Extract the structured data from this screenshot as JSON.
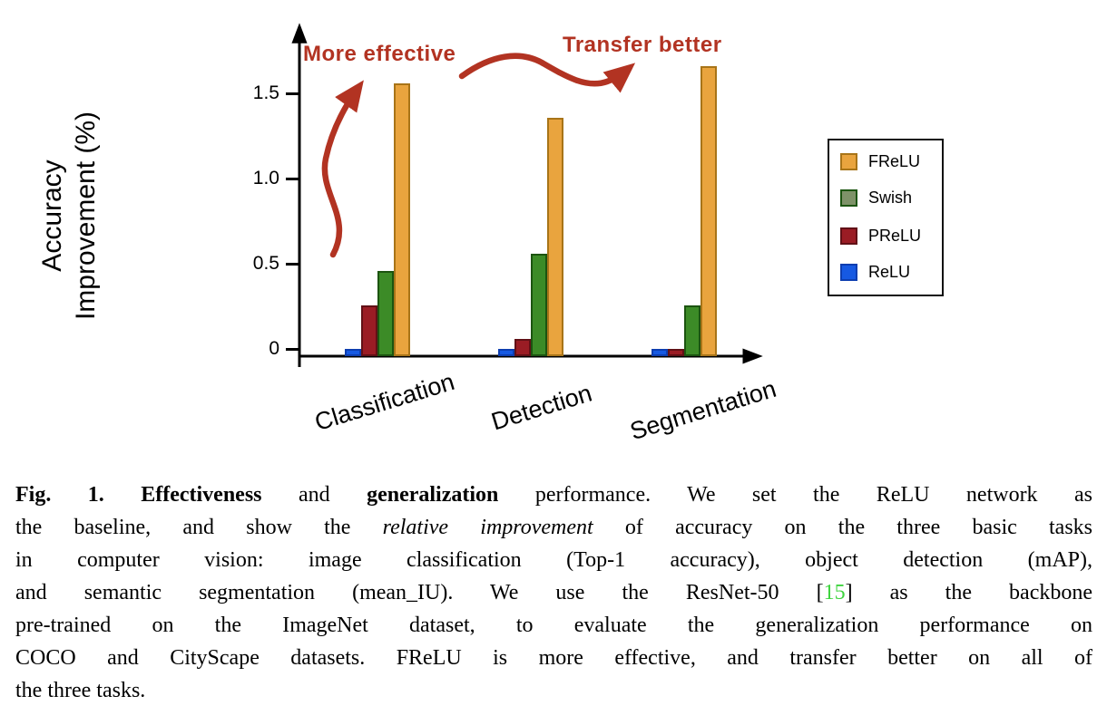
{
  "chart_data": {
    "type": "bar",
    "categories": [
      "Classification",
      "Detection",
      "Segmentation"
    ],
    "series": [
      {
        "name": "FReLU",
        "values": [
          1.6,
          1.4,
          1.7
        ],
        "color": "#e9a43e",
        "border": "#a87418",
        "legend_swatch": "#e9a43e"
      },
      {
        "name": "Swish",
        "values": [
          0.5,
          0.6,
          0.3
        ],
        "color": "#3c8b27",
        "border": "#1c5410",
        "legend_swatch": "#7e9268"
      },
      {
        "name": "PReLU",
        "values": [
          0.3,
          0.1,
          0.0
        ],
        "color": "#9a1c24",
        "border": "#611016",
        "legend_swatch": "#9a1c24"
      },
      {
        "name": "ReLU",
        "values": [
          0.0,
          0.0,
          0.0
        ],
        "color": "#1659e2",
        "border": "#0d3eb0",
        "legend_swatch": "#1659e2"
      }
    ],
    "ylabel_lines": [
      "Accuracy",
      "Improvement (%)"
    ],
    "ytick_labels": [
      "0",
      "0.5",
      "1.0",
      "1.5"
    ],
    "ytick_values": [
      0,
      0.5,
      1.0,
      1.5
    ],
    "ylim": [
      0,
      1.9
    ],
    "grid": false,
    "legend_position": "right",
    "baseline_note": "ReLU is the zero baseline",
    "annotation_color": "#b23322",
    "annotations": [
      {
        "text": "More effective",
        "arrow": "s-curve-up"
      },
      {
        "text": "Transfer better",
        "arrow": "wavy-right"
      }
    ]
  },
  "caption": {
    "citation_color": "#3fd43f",
    "lines": [
      [
        {
          "t": "Fig. 1. Effectiveness",
          "s": "b"
        },
        {
          "t": " and ",
          "s": "n"
        },
        {
          "t": "generalization",
          "s": "b"
        },
        {
          "t": " performance. We set the ReLU network as",
          "s": "n"
        }
      ],
      [
        {
          "t": "the baseline, and show the ",
          "s": "n"
        },
        {
          "t": "relative improvement",
          "s": "i"
        },
        {
          "t": " of accuracy on the three basic tasks",
          "s": "n"
        }
      ],
      [
        {
          "t": "in computer vision: image classification (Top-1 accuracy), object detection (mAP),",
          "s": "n"
        }
      ],
      [
        {
          "t": "and semantic segmentation (mean_IU). We use the ResNet-50 [",
          "s": "n"
        },
        {
          "t": "15",
          "s": "g"
        },
        {
          "t": "] as the backbone",
          "s": "n"
        }
      ],
      [
        {
          "t": "pre-trained on the ImageNet dataset, to evaluate the generalization performance on",
          "s": "n"
        }
      ],
      [
        {
          "t": "COCO and CityScape datasets. FReLU is more effective, and transfer better on all of",
          "s": "n"
        }
      ],
      [
        {
          "t": "the three tasks.",
          "s": "n"
        }
      ]
    ]
  }
}
